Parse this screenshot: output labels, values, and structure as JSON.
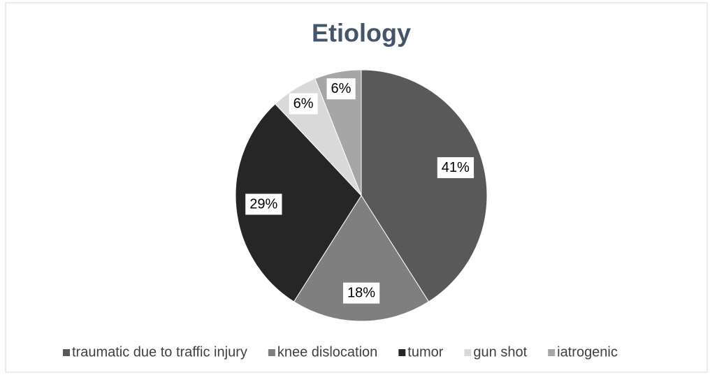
{
  "chart_data": {
    "type": "pie",
    "title": "Etiology",
    "categories": [
      "traumatic due to traffic injury",
      "knee dislocation",
      "tumor",
      "gun shot",
      "iatrogenic"
    ],
    "values": [
      41,
      18,
      29,
      6,
      6
    ],
    "value_labels": [
      "41%",
      "18%",
      "29%",
      "6%",
      "6%"
    ],
    "colors": [
      "#595959",
      "#7f7f7f",
      "#262626",
      "#d9d9d9",
      "#a6a6a6"
    ],
    "legend": "bottom"
  }
}
